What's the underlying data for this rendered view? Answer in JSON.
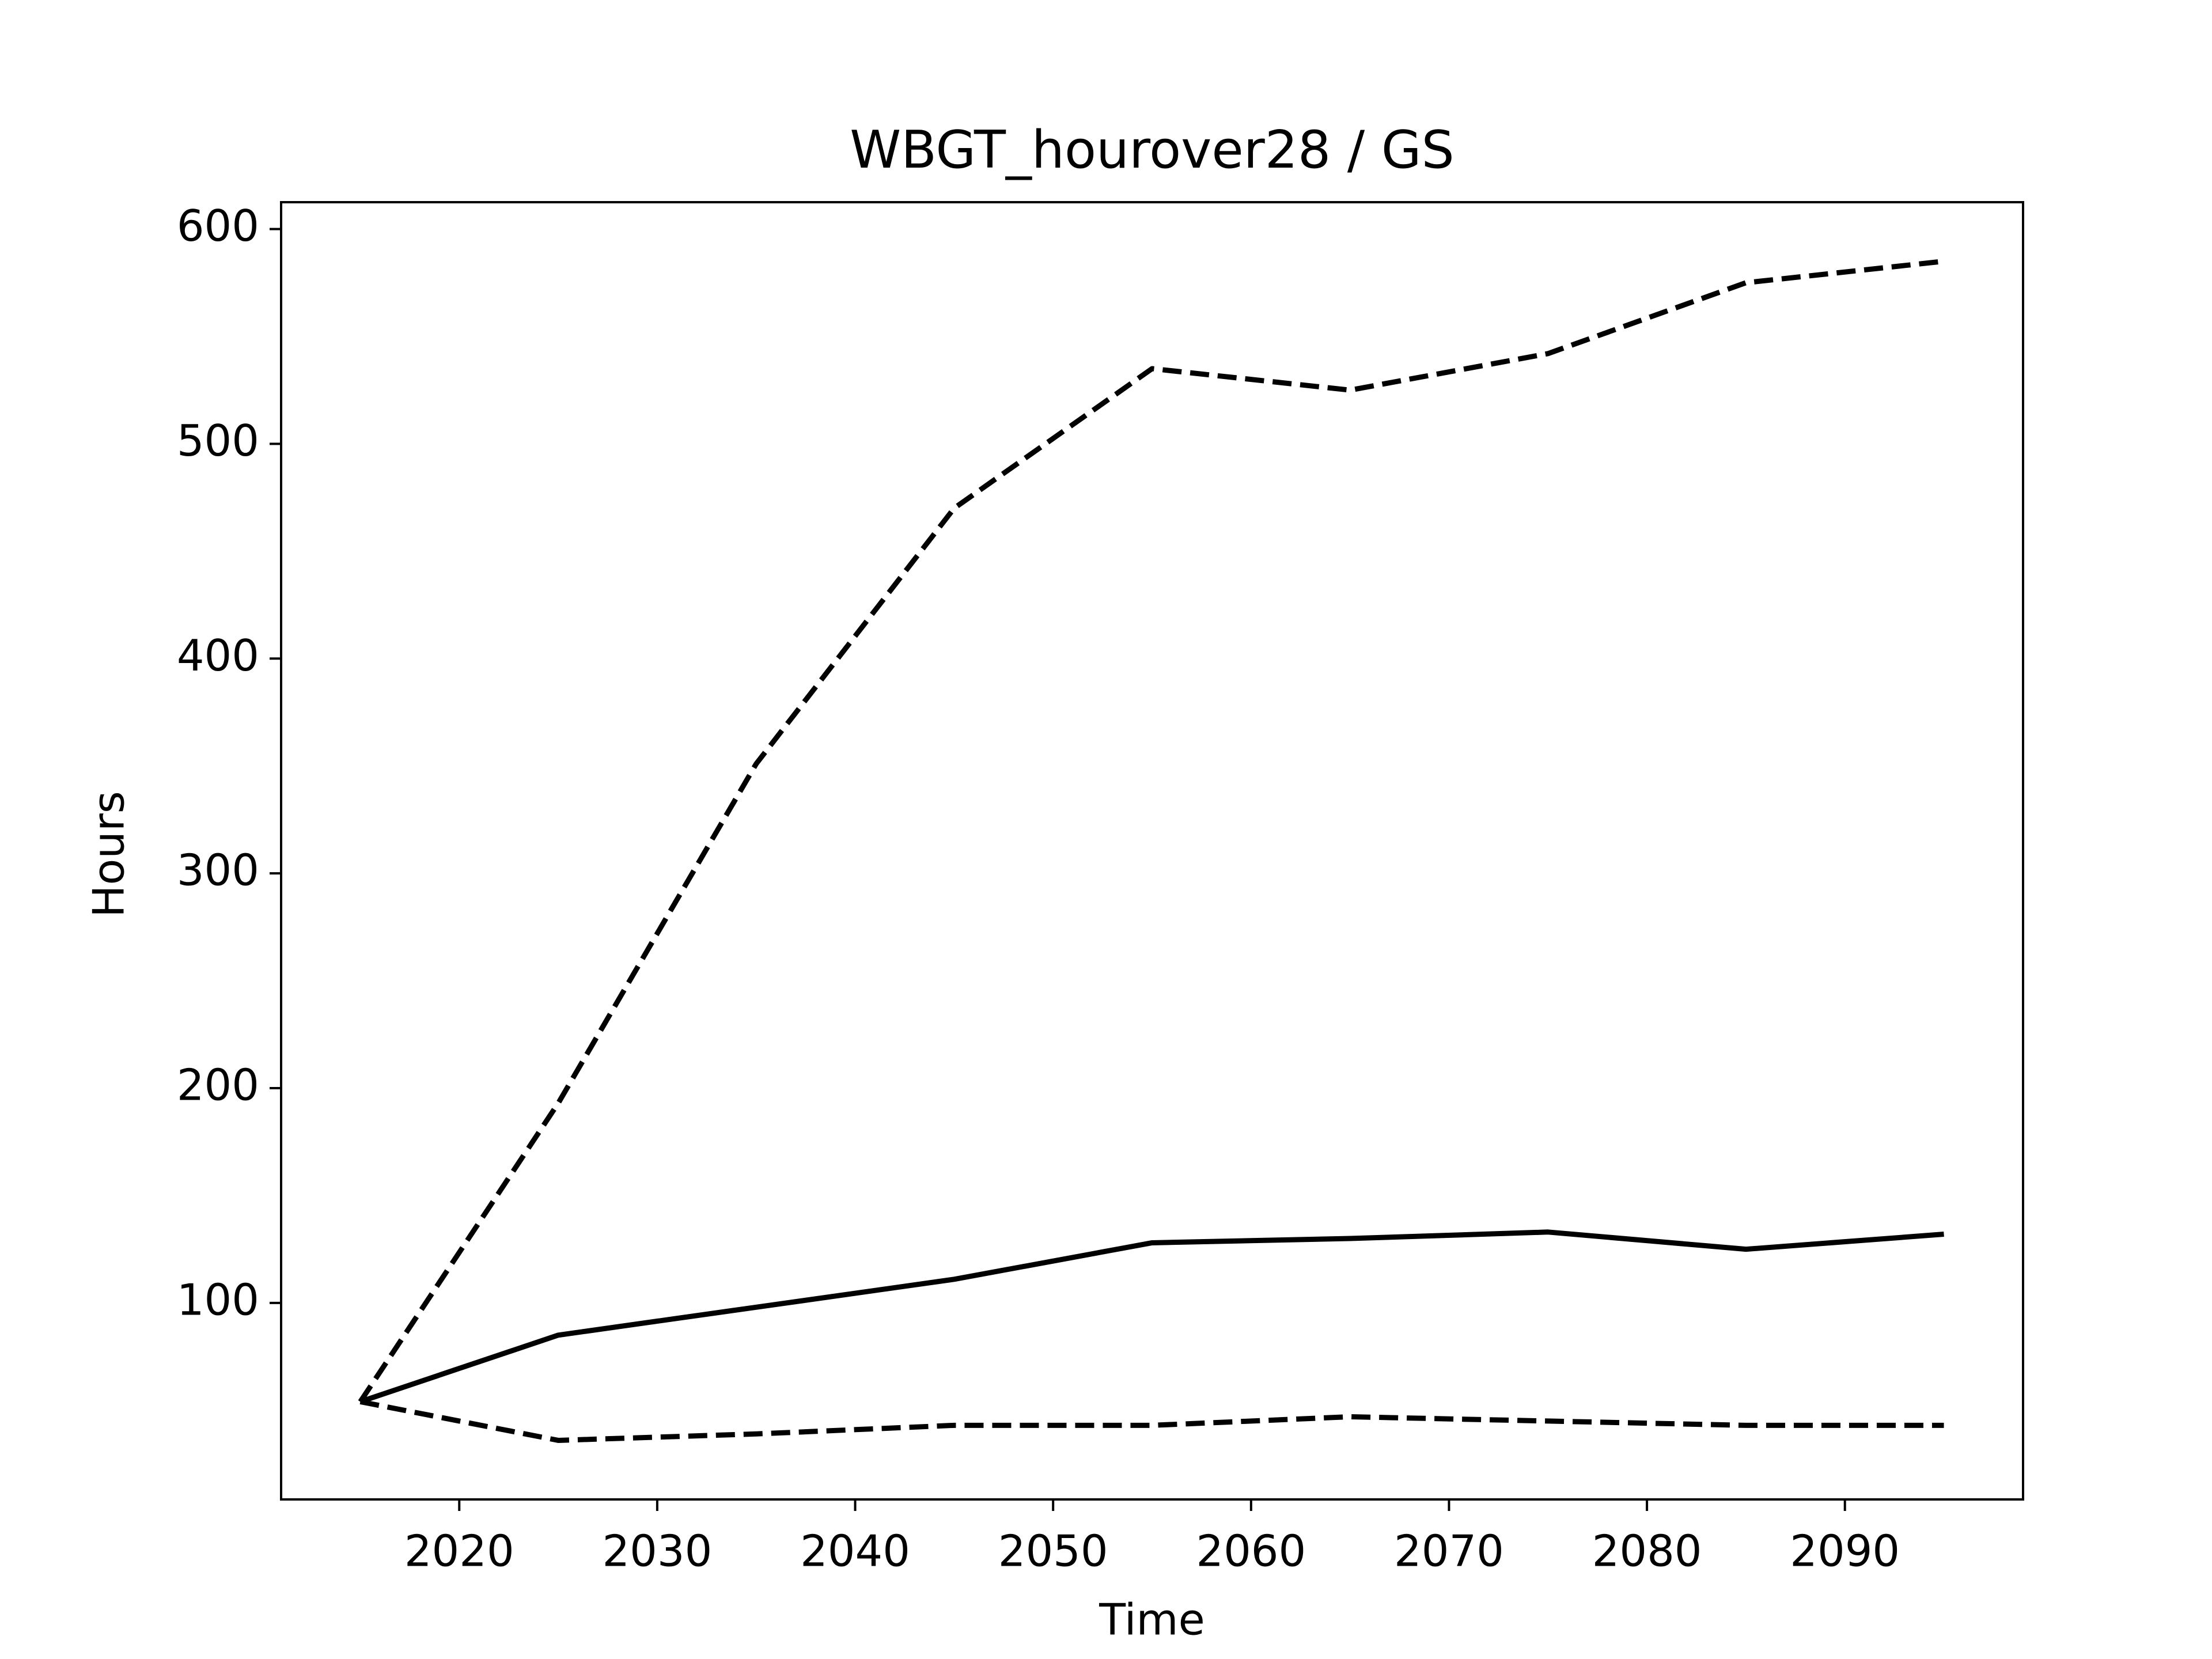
{
  "chart_data": {
    "type": "line",
    "title": "WBGT_hourover28 / GS",
    "x_label": "Time",
    "y_label": "Hours",
    "x": [
      2015,
      2025,
      2035,
      2045,
      2055,
      2065,
      2075,
      2085,
      2095
    ],
    "series": [
      {
        "color": "#000000",
        "style": "solid",
        "values": [
          54,
          85,
          98,
          111,
          128,
          130,
          133,
          125,
          132
        ]
      },
      {
        "color": "#000000",
        "style": "dashed",
        "values": [
          54,
          193,
          351,
          470,
          535,
          525,
          542,
          575,
          585
        ]
      },
      {
        "color": "#000000",
        "style": "dashed",
        "values": [
          54,
          36,
          39,
          43,
          43,
          47,
          45,
          43,
          43
        ]
      }
    ],
    "xlim": [
      2011,
      2099
    ],
    "xticks": [
      2020,
      2030,
      2040,
      2050,
      2060,
      2070,
      2080,
      2090
    ],
    "ylim": [
      8.5,
      612.5
    ],
    "yticks": [
      100,
      200,
      300,
      400,
      500,
      600
    ],
    "grid": false
  }
}
